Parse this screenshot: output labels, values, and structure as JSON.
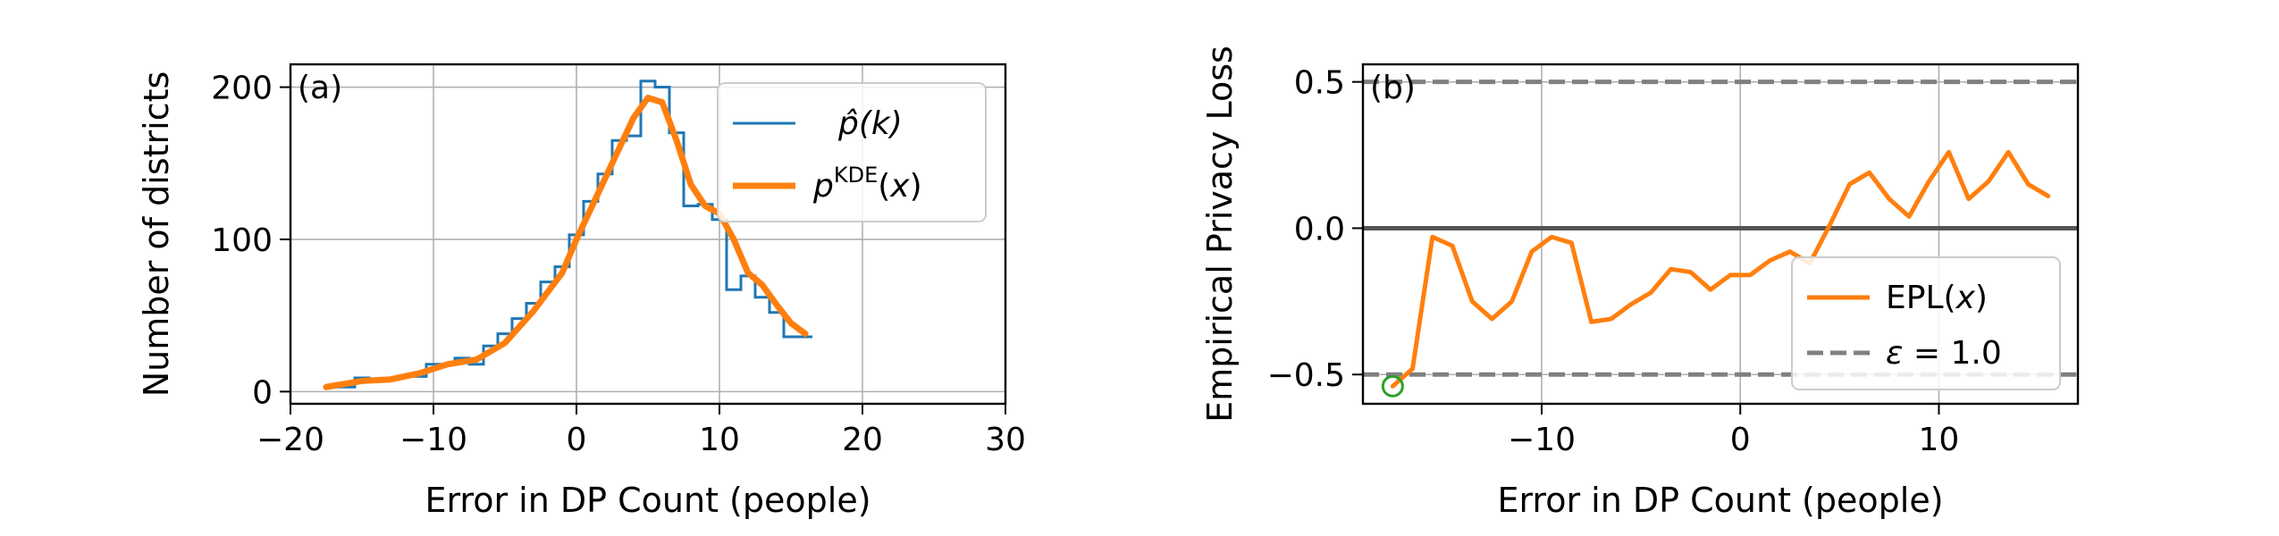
{
  "chart_data": [
    {
      "type": "line",
      "panel_label": "(a)",
      "xlabel": "Error in DP Count (people)",
      "ylabel": "Number of districts",
      "xlim": [
        -20,
        30
      ],
      "ylim": [
        -8,
        215
      ],
      "xticks": [
        -20,
        -10,
        0,
        10,
        20,
        30
      ],
      "xtick_labels": [
        "−20",
        "−10",
        "0",
        "10",
        "20",
        "30"
      ],
      "yticks": [
        0,
        100,
        200
      ],
      "ytick_labels": [
        "0",
        "100",
        "200"
      ],
      "grid": true,
      "legend_placement": "upper-right",
      "series": [
        {
          "name": "p̂(k)",
          "kind": "step",
          "color": "#1f77b4",
          "x": [
            -17.5,
            -16.5,
            -15.5,
            -14.5,
            -13.5,
            -12.5,
            -11.5,
            -10.5,
            -9.5,
            -8.5,
            -7.5,
            -6.5,
            -5.5,
            -4.5,
            -3.5,
            -2.5,
            -1.5,
            -0.5,
            0.5,
            1.5,
            2.5,
            3.5,
            4.5,
            5.5,
            6.5,
            7.5,
            8.5,
            9.5,
            10.5,
            11.5,
            12.5,
            13.5,
            14.5,
            15.5,
            16.5
          ],
          "values": [
            3,
            3,
            9,
            8,
            8,
            10,
            10,
            18,
            18,
            22,
            18,
            30,
            38,
            48,
            58,
            72,
            82,
            103,
            125,
            143,
            165,
            168,
            204,
            200,
            170,
            122,
            123,
            113,
            67,
            76,
            62,
            52,
            36,
            36,
            36
          ]
        },
        {
          "name": "p^KDE(x)",
          "kind": "line",
          "color": "#ff7f0e",
          "x": [
            -17.5,
            -15,
            -13,
            -11,
            -9,
            -7,
            -5,
            -3,
            -1,
            0,
            2,
            4,
            5,
            6,
            7,
            8,
            9,
            10,
            11,
            12,
            13,
            14,
            15,
            16
          ],
          "values": [
            3,
            7,
            8,
            12,
            18,
            21,
            32,
            53,
            78,
            100,
            140,
            180,
            193,
            190,
            165,
            136,
            122,
            117,
            100,
            78,
            70,
            57,
            45,
            38
          ]
        }
      ]
    },
    {
      "type": "line",
      "panel_label": "(b)",
      "xlabel": "Error in DP Count (people)",
      "ylabel": "Empirical Privacy Loss",
      "xlim": [
        -19,
        17
      ],
      "ylim": [
        -0.6,
        0.56
      ],
      "xticks": [
        -10,
        0,
        10
      ],
      "xtick_labels": [
        "−10",
        "0",
        "10"
      ],
      "yticks": [
        -0.5,
        0.0,
        0.5
      ],
      "ytick_labels": [
        "−0.5",
        "0.0",
        "0.5"
      ],
      "grid": true,
      "legend_placement": "lower-right",
      "zero_line": 0,
      "epsilon_lines": [
        -0.5,
        0.5
      ],
      "highlight_point": {
        "x": -17.5,
        "y": -0.54,
        "color": "#2ca02c"
      },
      "series": [
        {
          "name": "EPL(x)",
          "color": "#ff7f0e",
          "x": [
            -17.5,
            -16.5,
            -15.5,
            -14.5,
            -13.5,
            -12.5,
            -11.5,
            -10.5,
            -9.5,
            -8.5,
            -7.5,
            -6.5,
            -5.5,
            -4.5,
            -3.5,
            -2.5,
            -1.5,
            -0.5,
            0.5,
            1.5,
            2.5,
            3.5,
            4.5,
            5.5,
            6.5,
            7.5,
            8.5,
            9.5,
            10.5,
            11.5,
            12.5,
            13.5,
            14.5,
            15.5
          ],
          "values": [
            -0.54,
            -0.48,
            -0.03,
            -0.06,
            -0.25,
            -0.31,
            -0.25,
            -0.08,
            -0.03,
            -0.05,
            -0.32,
            -0.31,
            -0.26,
            -0.22,
            -0.14,
            -0.15,
            -0.21,
            -0.16,
            -0.16,
            -0.11,
            -0.08,
            -0.12,
            0.01,
            0.15,
            0.19,
            0.1,
            0.04,
            0.16,
            0.26,
            0.1,
            0.16,
            0.26,
            0.15,
            0.11
          ]
        },
        {
          "name": "ε = 1.0",
          "kind": "reference",
          "color": "#808080",
          "values": [
            -0.5,
            0.5
          ]
        }
      ]
    }
  ]
}
